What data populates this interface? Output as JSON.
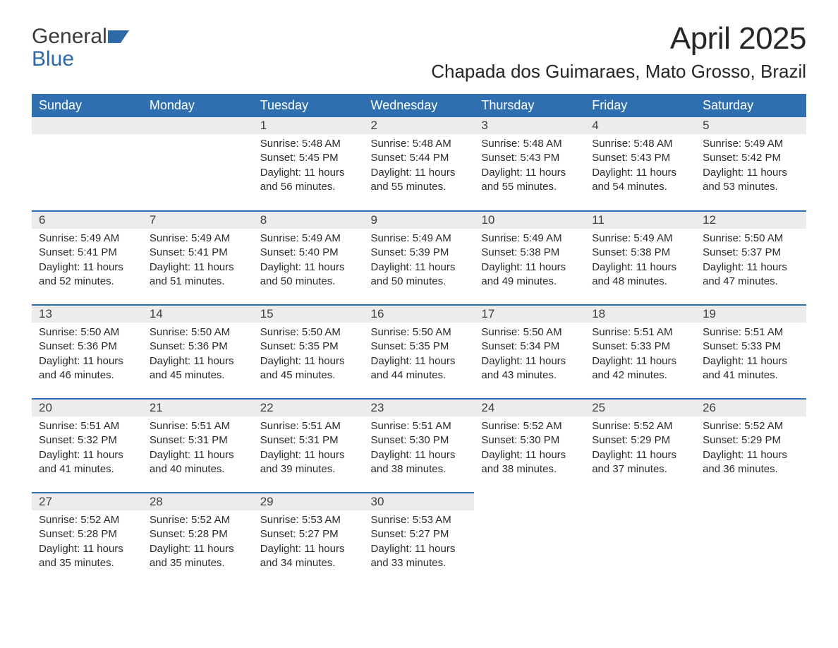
{
  "logo": {
    "text1": "General",
    "text2": "Blue",
    "color_dark": "#3a3a3a",
    "color_blue": "#2f6aa8"
  },
  "title": "April 2025",
  "location": "Chapada dos Guimaraes, Mato Grosso, Brazil",
  "colors": {
    "header_bg": "#2f6fb0",
    "header_text": "#ffffff",
    "band_bg": "#ececec",
    "band_border": "#2f6fb0",
    "body_text": "#2b2b2b",
    "page_bg": "#ffffff"
  },
  "fonts": {
    "title_size_pt": 33,
    "location_size_pt": 20,
    "dayhead_size_pt": 14,
    "body_size_pt": 11
  },
  "day_headers": [
    "Sunday",
    "Monday",
    "Tuesday",
    "Wednesday",
    "Thursday",
    "Friday",
    "Saturday"
  ],
  "weeks": [
    [
      null,
      null,
      {
        "n": "1",
        "sunrise": "Sunrise: 5:48 AM",
        "sunset": "Sunset: 5:45 PM",
        "dl1": "Daylight: 11 hours",
        "dl2": "and 56 minutes."
      },
      {
        "n": "2",
        "sunrise": "Sunrise: 5:48 AM",
        "sunset": "Sunset: 5:44 PM",
        "dl1": "Daylight: 11 hours",
        "dl2": "and 55 minutes."
      },
      {
        "n": "3",
        "sunrise": "Sunrise: 5:48 AM",
        "sunset": "Sunset: 5:43 PM",
        "dl1": "Daylight: 11 hours",
        "dl2": "and 55 minutes."
      },
      {
        "n": "4",
        "sunrise": "Sunrise: 5:48 AM",
        "sunset": "Sunset: 5:43 PM",
        "dl1": "Daylight: 11 hours",
        "dl2": "and 54 minutes."
      },
      {
        "n": "5",
        "sunrise": "Sunrise: 5:49 AM",
        "sunset": "Sunset: 5:42 PM",
        "dl1": "Daylight: 11 hours",
        "dl2": "and 53 minutes."
      }
    ],
    [
      {
        "n": "6",
        "sunrise": "Sunrise: 5:49 AM",
        "sunset": "Sunset: 5:41 PM",
        "dl1": "Daylight: 11 hours",
        "dl2": "and 52 minutes."
      },
      {
        "n": "7",
        "sunrise": "Sunrise: 5:49 AM",
        "sunset": "Sunset: 5:41 PM",
        "dl1": "Daylight: 11 hours",
        "dl2": "and 51 minutes."
      },
      {
        "n": "8",
        "sunrise": "Sunrise: 5:49 AM",
        "sunset": "Sunset: 5:40 PM",
        "dl1": "Daylight: 11 hours",
        "dl2": "and 50 minutes."
      },
      {
        "n": "9",
        "sunrise": "Sunrise: 5:49 AM",
        "sunset": "Sunset: 5:39 PM",
        "dl1": "Daylight: 11 hours",
        "dl2": "and 50 minutes."
      },
      {
        "n": "10",
        "sunrise": "Sunrise: 5:49 AM",
        "sunset": "Sunset: 5:38 PM",
        "dl1": "Daylight: 11 hours",
        "dl2": "and 49 minutes."
      },
      {
        "n": "11",
        "sunrise": "Sunrise: 5:49 AM",
        "sunset": "Sunset: 5:38 PM",
        "dl1": "Daylight: 11 hours",
        "dl2": "and 48 minutes."
      },
      {
        "n": "12",
        "sunrise": "Sunrise: 5:50 AM",
        "sunset": "Sunset: 5:37 PM",
        "dl1": "Daylight: 11 hours",
        "dl2": "and 47 minutes."
      }
    ],
    [
      {
        "n": "13",
        "sunrise": "Sunrise: 5:50 AM",
        "sunset": "Sunset: 5:36 PM",
        "dl1": "Daylight: 11 hours",
        "dl2": "and 46 minutes."
      },
      {
        "n": "14",
        "sunrise": "Sunrise: 5:50 AM",
        "sunset": "Sunset: 5:36 PM",
        "dl1": "Daylight: 11 hours",
        "dl2": "and 45 minutes."
      },
      {
        "n": "15",
        "sunrise": "Sunrise: 5:50 AM",
        "sunset": "Sunset: 5:35 PM",
        "dl1": "Daylight: 11 hours",
        "dl2": "and 45 minutes."
      },
      {
        "n": "16",
        "sunrise": "Sunrise: 5:50 AM",
        "sunset": "Sunset: 5:35 PM",
        "dl1": "Daylight: 11 hours",
        "dl2": "and 44 minutes."
      },
      {
        "n": "17",
        "sunrise": "Sunrise: 5:50 AM",
        "sunset": "Sunset: 5:34 PM",
        "dl1": "Daylight: 11 hours",
        "dl2": "and 43 minutes."
      },
      {
        "n": "18",
        "sunrise": "Sunrise: 5:51 AM",
        "sunset": "Sunset: 5:33 PM",
        "dl1": "Daylight: 11 hours",
        "dl2": "and 42 minutes."
      },
      {
        "n": "19",
        "sunrise": "Sunrise: 5:51 AM",
        "sunset": "Sunset: 5:33 PM",
        "dl1": "Daylight: 11 hours",
        "dl2": "and 41 minutes."
      }
    ],
    [
      {
        "n": "20",
        "sunrise": "Sunrise: 5:51 AM",
        "sunset": "Sunset: 5:32 PM",
        "dl1": "Daylight: 11 hours",
        "dl2": "and 41 minutes."
      },
      {
        "n": "21",
        "sunrise": "Sunrise: 5:51 AM",
        "sunset": "Sunset: 5:31 PM",
        "dl1": "Daylight: 11 hours",
        "dl2": "and 40 minutes."
      },
      {
        "n": "22",
        "sunrise": "Sunrise: 5:51 AM",
        "sunset": "Sunset: 5:31 PM",
        "dl1": "Daylight: 11 hours",
        "dl2": "and 39 minutes."
      },
      {
        "n": "23",
        "sunrise": "Sunrise: 5:51 AM",
        "sunset": "Sunset: 5:30 PM",
        "dl1": "Daylight: 11 hours",
        "dl2": "and 38 minutes."
      },
      {
        "n": "24",
        "sunrise": "Sunrise: 5:52 AM",
        "sunset": "Sunset: 5:30 PM",
        "dl1": "Daylight: 11 hours",
        "dl2": "and 38 minutes."
      },
      {
        "n": "25",
        "sunrise": "Sunrise: 5:52 AM",
        "sunset": "Sunset: 5:29 PM",
        "dl1": "Daylight: 11 hours",
        "dl2": "and 37 minutes."
      },
      {
        "n": "26",
        "sunrise": "Sunrise: 5:52 AM",
        "sunset": "Sunset: 5:29 PM",
        "dl1": "Daylight: 11 hours",
        "dl2": "and 36 minutes."
      }
    ],
    [
      {
        "n": "27",
        "sunrise": "Sunrise: 5:52 AM",
        "sunset": "Sunset: 5:28 PM",
        "dl1": "Daylight: 11 hours",
        "dl2": "and 35 minutes."
      },
      {
        "n": "28",
        "sunrise": "Sunrise: 5:52 AM",
        "sunset": "Sunset: 5:28 PM",
        "dl1": "Daylight: 11 hours",
        "dl2": "and 35 minutes."
      },
      {
        "n": "29",
        "sunrise": "Sunrise: 5:53 AM",
        "sunset": "Sunset: 5:27 PM",
        "dl1": "Daylight: 11 hours",
        "dl2": "and 34 minutes."
      },
      {
        "n": "30",
        "sunrise": "Sunrise: 5:53 AM",
        "sunset": "Sunset: 5:27 PM",
        "dl1": "Daylight: 11 hours",
        "dl2": "and 33 minutes."
      },
      null,
      null,
      null
    ]
  ]
}
